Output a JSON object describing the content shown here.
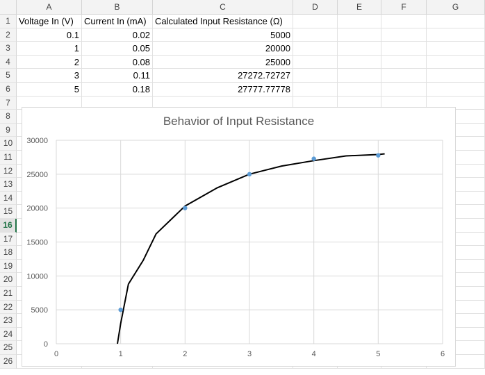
{
  "columns": [
    "A",
    "B",
    "C",
    "D",
    "E",
    "F",
    "G"
  ],
  "rows": [
    "1",
    "2",
    "3",
    "4",
    "5",
    "6",
    "7",
    "8",
    "9",
    "10",
    "11",
    "12",
    "13",
    "14",
    "15",
    "16",
    "17",
    "18",
    "19",
    "20",
    "21",
    "22",
    "23",
    "24",
    "25",
    "26"
  ],
  "selected_row": "16",
  "headers": {
    "a": "Voltage In (V)",
    "b": "Current In (mA)",
    "c": "Calculated Input Resistance (Ω)"
  },
  "table": [
    [
      "0.1",
      "0.02",
      "5000"
    ],
    [
      "1",
      "0.05",
      "20000"
    ],
    [
      "2",
      "0.08",
      "25000"
    ],
    [
      "3",
      "0.11",
      "27272.72727"
    ],
    [
      "5",
      "0.18",
      "27777.77778"
    ]
  ],
  "chart_data": {
    "type": "scatter",
    "title": "Behavior of Input Resistance",
    "xlabel": "",
    "ylabel": "",
    "xlim": [
      0,
      6
    ],
    "ylim": [
      0,
      30000
    ],
    "x_ticks": [
      "0",
      "1",
      "2",
      "3",
      "4",
      "5",
      "6"
    ],
    "y_ticks": [
      "0",
      "5000",
      "10000",
      "15000",
      "20000",
      "25000",
      "30000"
    ],
    "grid": true,
    "points": [
      {
        "x": 1,
        "y": 5000
      },
      {
        "x": 2,
        "y": 20000
      },
      {
        "x": 3,
        "y": 25000
      },
      {
        "x": 4,
        "y": 27272.72727
      },
      {
        "x": 5,
        "y": 27777.77778
      }
    ],
    "trendline": [
      {
        "x": 0.95,
        "y": 0
      },
      {
        "x": 1.0,
        "y": 3000
      },
      {
        "x": 1.12,
        "y": 8800
      },
      {
        "x": 1.35,
        "y": 12300
      },
      {
        "x": 1.55,
        "y": 16200
      },
      {
        "x": 2.0,
        "y": 20300
      },
      {
        "x": 2.5,
        "y": 23000
      },
      {
        "x": 3.0,
        "y": 25000
      },
      {
        "x": 3.5,
        "y": 26200
      },
      {
        "x": 4.0,
        "y": 27000
      },
      {
        "x": 4.5,
        "y": 27700
      },
      {
        "x": 5.0,
        "y": 27900
      },
      {
        "x": 5.1,
        "y": 28000
      }
    ],
    "marker_color": "#5b9bd5",
    "line_color": "#000000"
  }
}
